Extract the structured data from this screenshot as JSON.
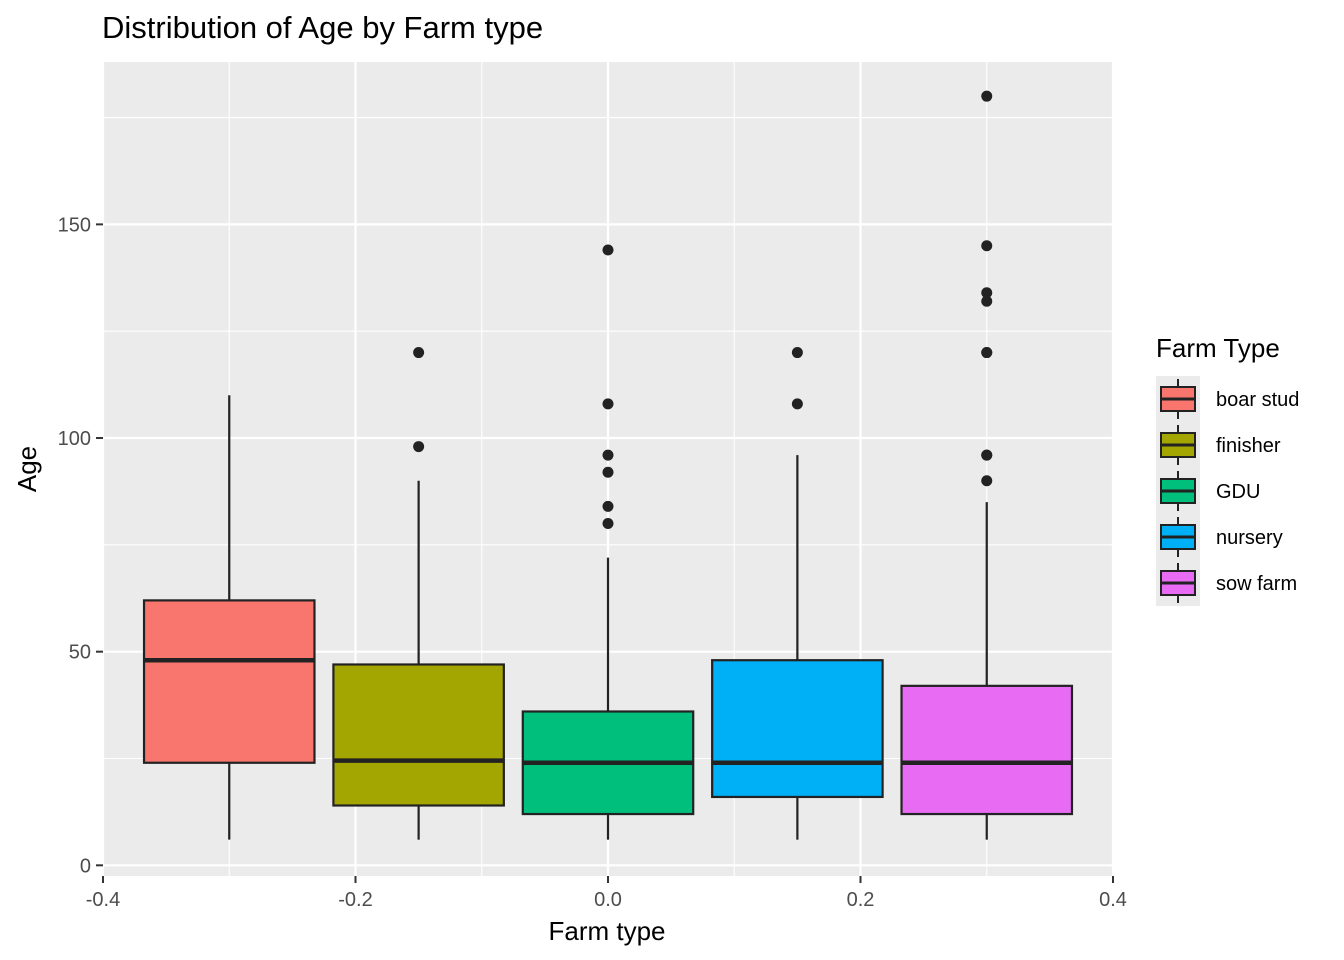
{
  "chart_data": {
    "type": "boxplot",
    "title": "Distribution of Age by Farm type",
    "xlabel": "Farm type",
    "ylabel": "Age",
    "xlim": [
      -0.4,
      0.4
    ],
    "ylim": [
      -2.5,
      188
    ],
    "x_ticks": [
      -0.4,
      -0.2,
      0.0,
      0.2,
      0.4
    ],
    "x_tick_labels": [
      "-0.4",
      "-0.2",
      "0.0",
      "0.2",
      "0.4"
    ],
    "y_ticks": [
      0,
      50,
      100,
      150
    ],
    "y_tick_labels": [
      "0",
      "50",
      "100",
      "150"
    ],
    "grid": true,
    "legend": {
      "title": "Farm Type",
      "placement": "right"
    },
    "series": [
      {
        "name": "boar stud",
        "color": "#F8766D",
        "x": -0.3,
        "box_width": 0.135,
        "min": 6,
        "q1": 24,
        "median": 48,
        "q3": 62,
        "max": 110,
        "outliers": []
      },
      {
        "name": "finisher",
        "color": "#A3A500",
        "x": -0.15,
        "box_width": 0.135,
        "min": 6,
        "q1": 14,
        "median": 24.5,
        "q3": 47,
        "max": 90,
        "outliers": [
          98,
          120
        ]
      },
      {
        "name": "GDU",
        "color": "#00BF7D",
        "x": 0.0,
        "box_width": 0.135,
        "min": 6,
        "q1": 12,
        "median": 24,
        "q3": 36,
        "max": 72,
        "outliers": [
          80,
          84,
          92,
          96,
          108,
          144
        ]
      },
      {
        "name": "nursery",
        "color": "#00B0F6",
        "x": 0.15,
        "box_width": 0.135,
        "min": 6,
        "q1": 16,
        "median": 24,
        "q3": 48,
        "max": 96,
        "outliers": [
          108,
          120
        ]
      },
      {
        "name": "sow farm",
        "color": "#E76BF3",
        "x": 0.3,
        "box_width": 0.135,
        "min": 6,
        "q1": 12,
        "median": 24,
        "q3": 42,
        "max": 85,
        "outliers": [
          90,
          96,
          96,
          120,
          120,
          132,
          134,
          145,
          180
        ]
      }
    ]
  }
}
